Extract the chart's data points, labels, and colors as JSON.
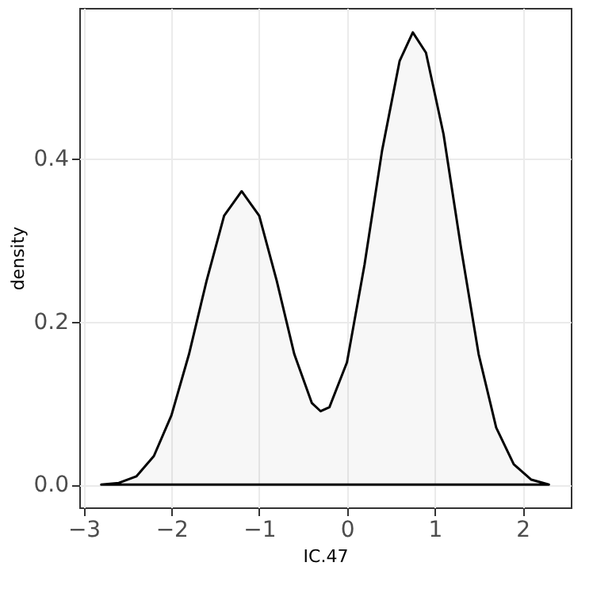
{
  "chart_data": {
    "type": "area",
    "xlabel": "IC.47",
    "ylabel": "density",
    "x": [
      -2.8,
      -2.6,
      -2.4,
      -2.2,
      -2.0,
      -1.8,
      -1.6,
      -1.4,
      -1.2,
      -1.0,
      -0.8,
      -0.6,
      -0.4,
      -0.3,
      -0.2,
      0.0,
      0.2,
      0.4,
      0.6,
      0.75,
      0.9,
      1.1,
      1.3,
      1.5,
      1.7,
      1.9,
      2.1,
      2.3
    ],
    "values": [
      0.0,
      0.002,
      0.01,
      0.035,
      0.085,
      0.16,
      0.25,
      0.33,
      0.36,
      0.33,
      0.25,
      0.16,
      0.1,
      0.09,
      0.095,
      0.15,
      0.27,
      0.41,
      0.52,
      0.555,
      0.53,
      0.43,
      0.29,
      0.16,
      0.07,
      0.025,
      0.006,
      0.0
    ],
    "color": "#000000",
    "xlim": [
      -3.05,
      2.55
    ],
    "ylim": [
      -0.028,
      0.585
    ],
    "xticks": [
      -3,
      -2,
      -1,
      0,
      1,
      2
    ],
    "yticks": [
      {
        "value": 0,
        "label": "0.0"
      },
      0.2,
      0.4
    ],
    "grid": true
  }
}
